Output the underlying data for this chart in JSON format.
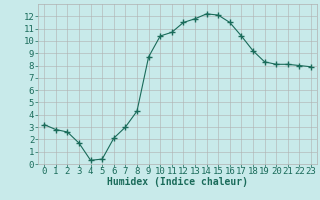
{
  "x": [
    0,
    1,
    2,
    3,
    4,
    5,
    6,
    7,
    8,
    9,
    10,
    11,
    12,
    13,
    14,
    15,
    16,
    17,
    18,
    19,
    20,
    21,
    22,
    23
  ],
  "y": [
    3.2,
    2.8,
    2.6,
    1.7,
    0.3,
    0.4,
    2.1,
    3.0,
    4.3,
    8.7,
    10.4,
    10.7,
    11.5,
    11.8,
    12.2,
    12.1,
    11.5,
    10.4,
    9.2,
    8.3,
    8.1,
    8.1,
    8.0,
    7.9
  ],
  "line_color": "#1a6b5a",
  "marker_color": "#1a6b5a",
  "bg_color": "#c8eaea",
  "grid_color": "#b0b0b0",
  "xlabel": "Humidex (Indice chaleur)",
  "xlim": [
    -0.5,
    23.5
  ],
  "ylim": [
    0,
    13
  ],
  "xticks": [
    0,
    1,
    2,
    3,
    4,
    5,
    6,
    7,
    8,
    9,
    10,
    11,
    12,
    13,
    14,
    15,
    16,
    17,
    18,
    19,
    20,
    21,
    22,
    23
  ],
  "yticks": [
    0,
    1,
    2,
    3,
    4,
    5,
    6,
    7,
    8,
    9,
    10,
    11,
    12
  ],
  "xlabel_color": "#1a6b5a",
  "tick_color": "#1a6b5a",
  "font_size_label": 7,
  "font_size_tick": 6.5
}
